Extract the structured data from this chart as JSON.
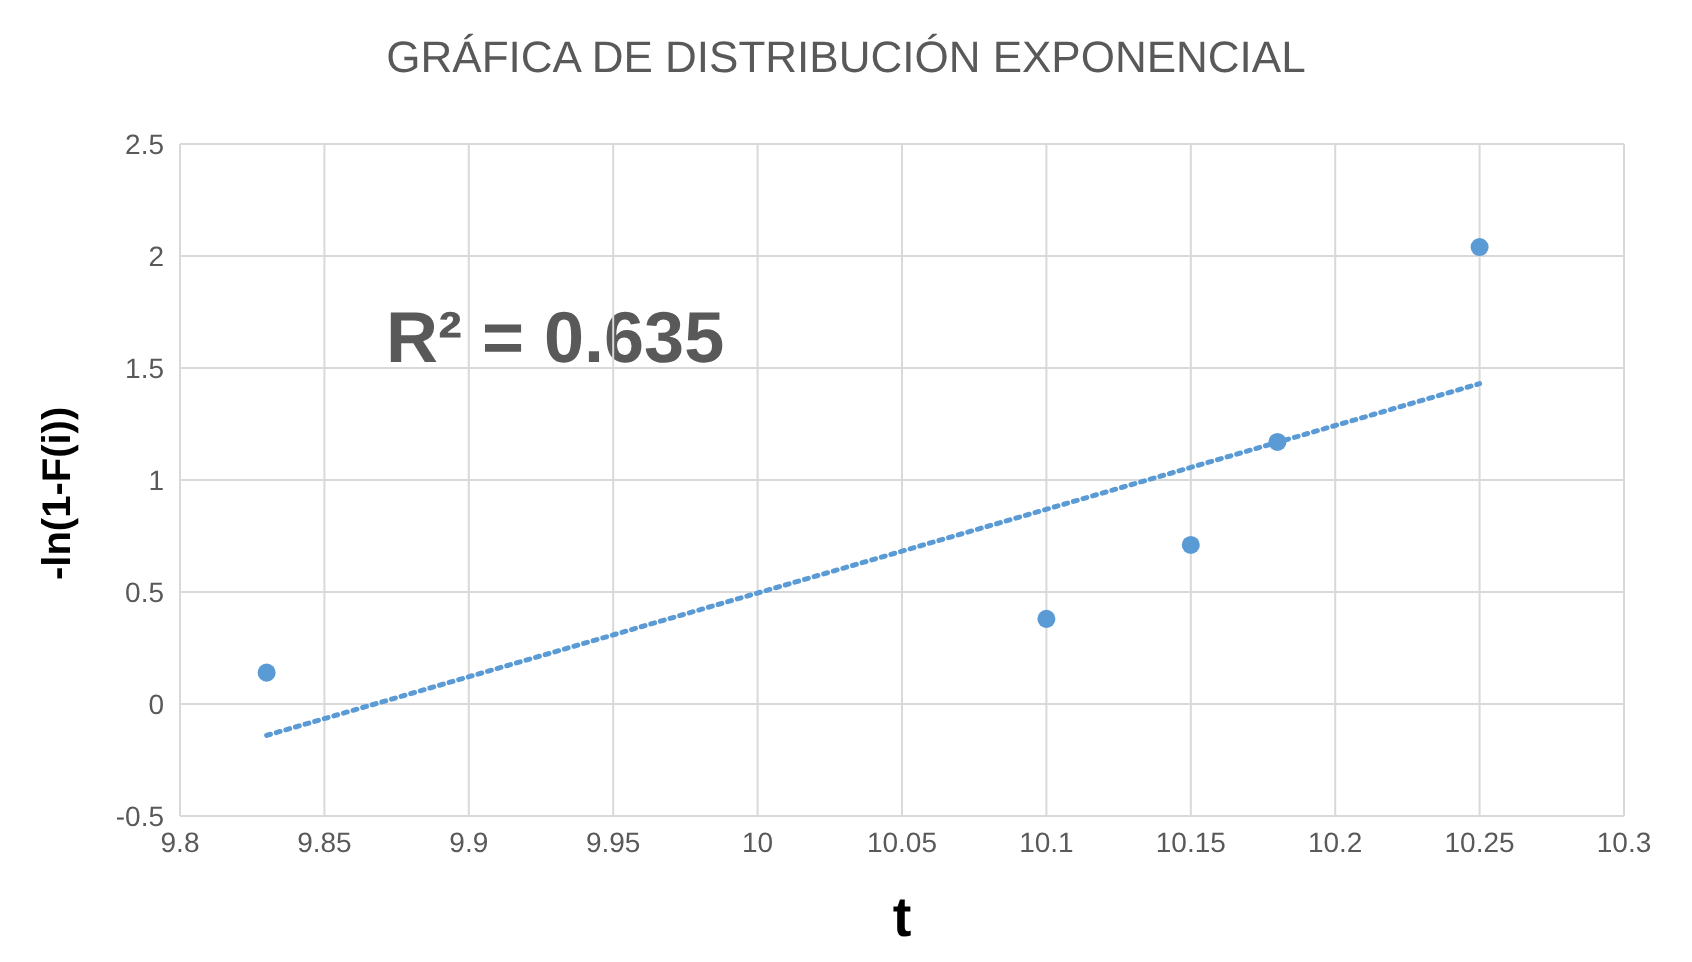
{
  "chart_data": {
    "type": "scatter",
    "title": "GRÁFICA  DE DISTRIBUCIÓN EXPONENCIAL",
    "xlabel": "t",
    "ylabel": "-ln(1-F(i))",
    "annotations": [
      "R² = 0.635"
    ],
    "series": [
      {
        "color": "#5b9bd5",
        "x": [
          9.83,
          10.1,
          10.15,
          10.18,
          10.25
        ],
        "values": [
          0.14,
          0.38,
          0.71,
          1.17,
          2.04
        ],
        "marker": "circle"
      },
      {
        "type": "line",
        "color": "#5b9bd5",
        "x": [
          9.83,
          10.25
        ],
        "values": [
          -0.14,
          1.43
        ],
        "line_style": "dotted",
        "marker": "none"
      }
    ],
    "xlim": [
      9.8,
      10.3
    ],
    "xticks": [
      9.8,
      9.85,
      9.9,
      9.95,
      10,
      10.05,
      10.1,
      10.15,
      10.2,
      10.25,
      10.3
    ],
    "ylim": [
      -0.5,
      2.5
    ],
    "yticks": [
      -0.5,
      0,
      0.5,
      1,
      1.5,
      2,
      2.5
    ],
    "grid": true,
    "legend": false
  }
}
